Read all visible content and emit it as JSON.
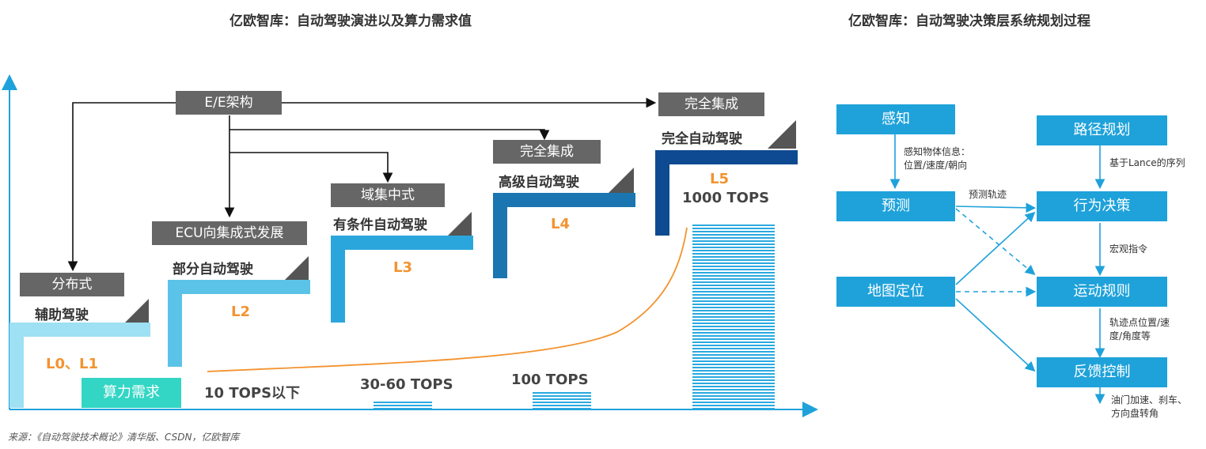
{
  "left_title": "亿欧智库：自动驾驶演进以及算力需求值",
  "right_title": "亿欧智库：自动驾驶决策层系统规划过程",
  "architecture": {
    "ee": "E/E架构",
    "distributed": "分布式",
    "ecu": "ECU向集成式发展",
    "domain": "域集中式",
    "full_integration_l4": "完全集成",
    "full_integration_l5": "完全集成"
  },
  "levels": [
    {
      "name": "辅助驾驶",
      "code": "L0、L1"
    },
    {
      "name": "部分自动驾驶",
      "code": "L2"
    },
    {
      "name": "有条件自动驾驶",
      "code": "L3"
    },
    {
      "name": "高级自动驾驶",
      "code": "L4"
    },
    {
      "name": "完全自动驾驶",
      "code": "L5"
    }
  ],
  "compute": {
    "label": "算力需求",
    "values": [
      "10 TOPS以下",
      "30-60 TOPS",
      "100 TOPS",
      "1000 TOPS"
    ]
  },
  "flow": {
    "perception": "感知",
    "prediction": "预测",
    "map": "地图定位",
    "route": "路径规划",
    "behavior": "行为决策",
    "motion": "运动规则",
    "feedback": "反馈控制",
    "lbl_perception": [
      "感知物体信息：",
      "位置/速度/朝向"
    ],
    "lbl_prediction": "预测轨迹",
    "lbl_route": "基于Lance的序列",
    "lbl_behavior": "宏观指令",
    "lbl_motion": [
      "轨迹点位置/速",
      "度/角度等"
    ],
    "lbl_feedback": [
      "油门加速、刹车、",
      "方向盘转角"
    ]
  },
  "colors": {
    "step_l01": "#9ee0f4",
    "step_l2": "#5cc3e8",
    "step_l3": "#2ba6dd",
    "step_l4": "#1a75b0",
    "step_l5": "#0e4a91",
    "orange": "#f39330",
    "teal": "#33d6c4",
    "flow_blue": "#1fa2da"
  },
  "source": "来源：《自动驾驶技术概论》清华版、CSDN，亿欧智库"
}
